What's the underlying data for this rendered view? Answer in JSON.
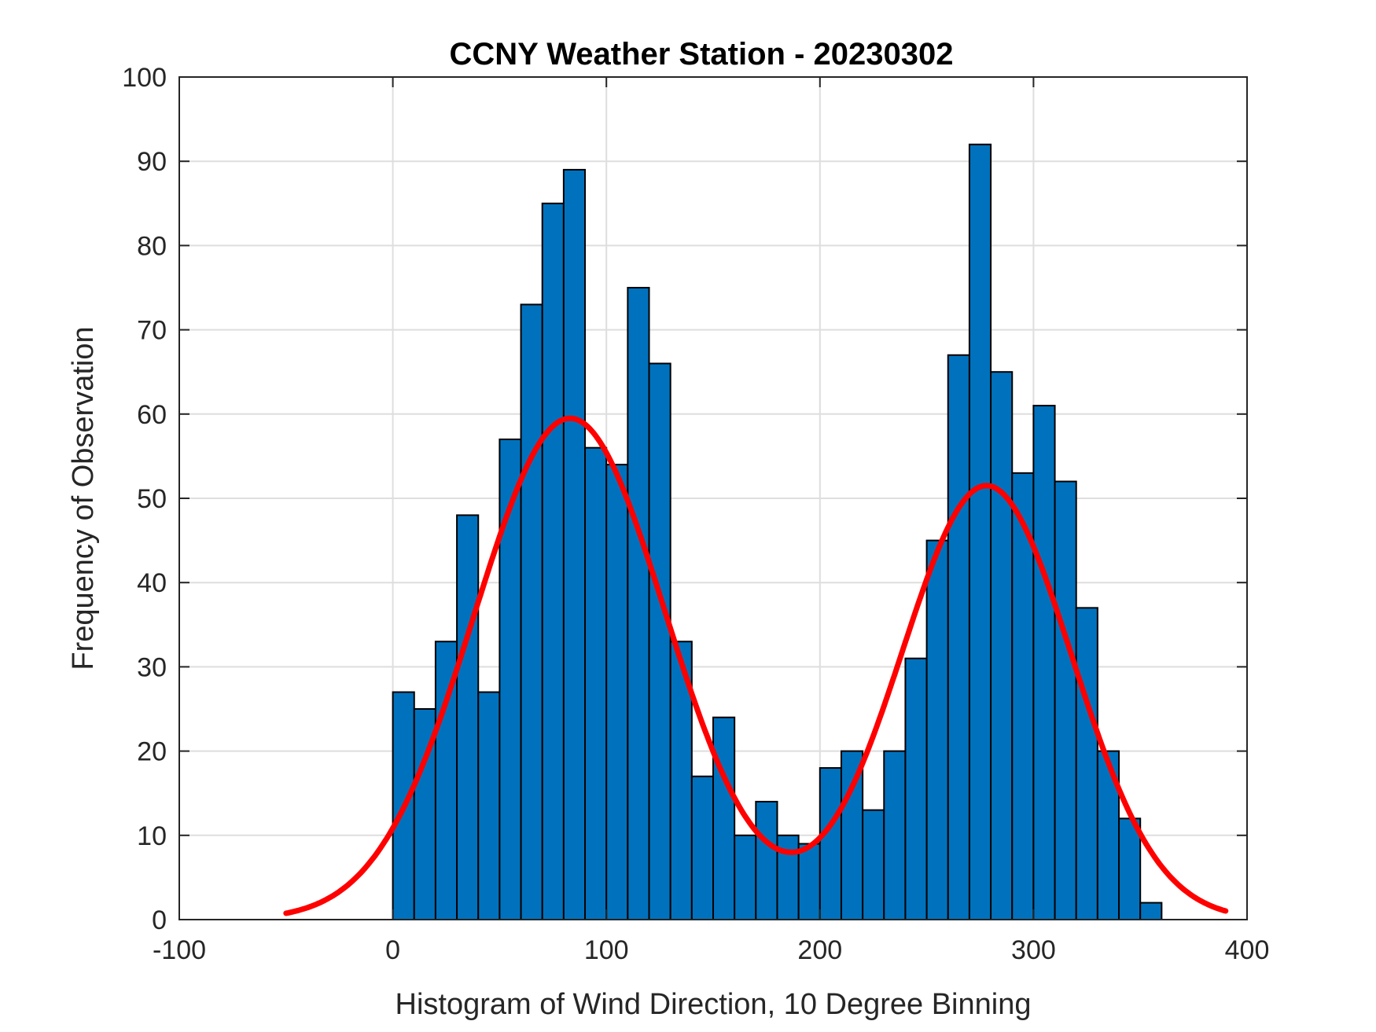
{
  "chart_data": {
    "type": "bar",
    "title": "CCNY Weather Station - 20230302",
    "xlabel": "Histogram of Wind Direction, 10 Degree Binning",
    "ylabel": "Frequency of Observation",
    "xlim": [
      -100,
      400
    ],
    "ylim": [
      0,
      100
    ],
    "xticks": [
      -100,
      0,
      100,
      200,
      300,
      400
    ],
    "yticks": [
      0,
      10,
      20,
      30,
      40,
      50,
      60,
      70,
      80,
      90,
      100
    ],
    "grid": true,
    "bin_width": 10,
    "bin_edges_start": 0,
    "values": [
      27,
      25,
      33,
      48,
      27,
      57,
      73,
      85,
      89,
      56,
      54,
      75,
      66,
      33,
      17,
      24,
      10,
      14,
      10,
      9,
      18,
      20,
      13,
      20,
      31,
      45,
      67,
      92,
      65,
      53,
      61,
      52,
      37,
      20,
      12,
      2
    ],
    "bar_color": "#0072BD",
    "fit_curve": {
      "name": "bimodal gaussian fit",
      "color": "#FF0000",
      "x_range": [
        -50,
        390
      ],
      "components": [
        {
          "amplitude": 59.5,
          "mean": 83,
          "sigma": 45
        },
        {
          "amplitude": 51.5,
          "mean": 278,
          "sigma": 40
        }
      ]
    }
  }
}
